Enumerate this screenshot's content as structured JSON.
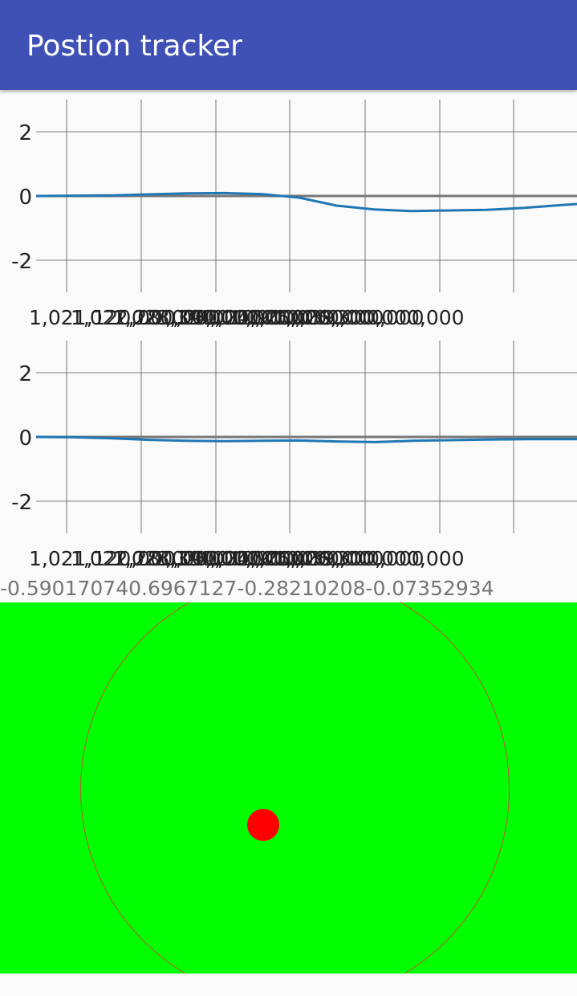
{
  "app_bar": {
    "title": "Postion tracker"
  },
  "sensor_values": "-0.590170740.6967127-0.28210208-0.07352934",
  "chart_data": [
    {
      "type": "line",
      "ylim": [
        -3,
        3
      ],
      "y_ticks": [
        "2",
        "0",
        "-2"
      ],
      "x_tick_labels": [
        "1,021,120,000,000",
        "1,022,280,000,000",
        "1,023,390,000,000",
        "1,024,010,000,000",
        "1,024,900,000,000",
        "1,025,039,000,000",
        "1,026,300,000,000"
      ],
      "grid": true,
      "x": [
        0,
        0.5,
        1,
        1.5,
        2,
        2.5,
        3,
        3.5,
        4,
        4.5,
        5,
        5.5,
        6,
        6.5,
        7,
        7.2
      ],
      "series": [
        {
          "color": "#1f77b4",
          "values": [
            0,
            0.01,
            0.02,
            0.05,
            0.08,
            0.09,
            0.06,
            -0.05,
            -0.3,
            -0.42,
            -0.47,
            -0.45,
            -0.43,
            -0.37,
            -0.28,
            -0.25
          ]
        },
        {
          "color": "#777777",
          "values": [
            0,
            0,
            0,
            0,
            0,
            0,
            0,
            0,
            0,
            0,
            0,
            0,
            0,
            0,
            0,
            0
          ]
        }
      ]
    },
    {
      "type": "line",
      "ylim": [
        -3,
        3
      ],
      "y_ticks": [
        "2",
        "0",
        "-2"
      ],
      "x_tick_labels": [
        "1,021,120,000,000",
        "1,022,280,000,000",
        "1,023,390,000,000",
        "1,024,010,000,000",
        "1,024,900,000,000",
        "1,025,039,000,000",
        "1,026,300,000,000"
      ],
      "grid": true,
      "x": [
        0,
        0.5,
        1,
        1.5,
        2,
        2.5,
        3,
        3.5,
        4,
        4.5,
        5,
        5.5,
        6,
        6.5,
        7,
        7.2
      ],
      "series": [
        {
          "color": "#1f77b4",
          "values": [
            0,
            -0.01,
            -0.04,
            -0.09,
            -0.12,
            -0.13,
            -0.12,
            -0.11,
            -0.14,
            -0.16,
            -0.12,
            -0.1,
            -0.08,
            -0.07,
            -0.07,
            -0.07
          ]
        },
        {
          "color": "#777777",
          "values": [
            0,
            0,
            0,
            0,
            0,
            0,
            0,
            0,
            0,
            0,
            0,
            0,
            0,
            0,
            0,
            0
          ]
        }
      ]
    }
  ],
  "joystick": {
    "background": "#00ff00",
    "ring_color": "#c24f3a",
    "dot_color": "#ff0000"
  }
}
